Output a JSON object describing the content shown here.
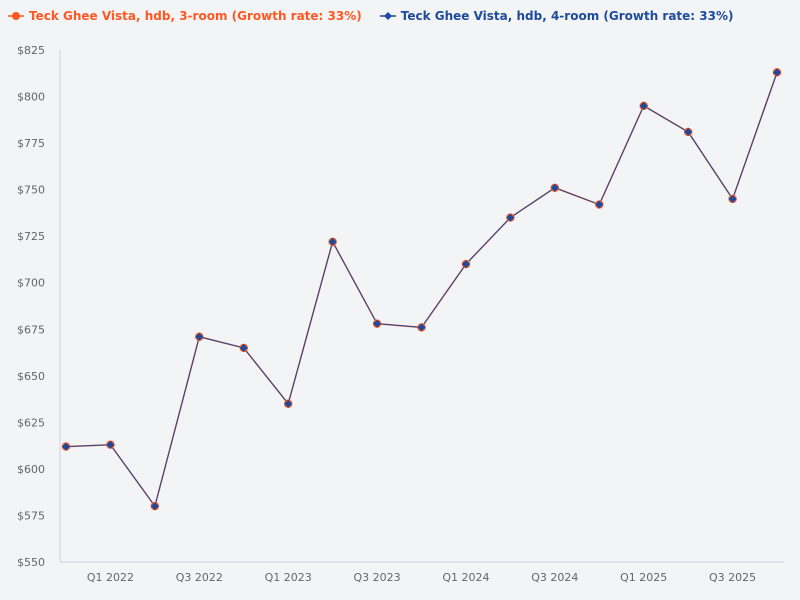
{
  "chart_data": {
    "type": "line",
    "categories": [
      "Q4 2021",
      "Q1 2022",
      "Q2 2022",
      "Q3 2022",
      "Q4 2022",
      "Q1 2023",
      "Q2 2023",
      "Q3 2023",
      "Q4 2023",
      "Q1 2024",
      "Q2 2024",
      "Q3 2024",
      "Q4 2024",
      "Q1 2025",
      "Q2 2025",
      "Q3 2025",
      "Q4 2025"
    ],
    "x_tick_labels": [
      "Q1 2022",
      "Q3 2022",
      "Q1 2023",
      "Q3 2023",
      "Q1 2024",
      "Q3 2024",
      "Q1 2025",
      "Q3 2025"
    ],
    "y_tick_labels": [
      "$550",
      "$575",
      "$600",
      "$625",
      "$650",
      "$675",
      "$700",
      "$725",
      "$750",
      "$775",
      "$800",
      "$825"
    ],
    "ylim": [
      550,
      825
    ],
    "grid": false,
    "legend_position": "top-left",
    "series": [
      {
        "name": "Teck Ghee Vista, hdb, 3-room (Growth rate: 33%)",
        "color": "#ff5722",
        "marker": "circle",
        "values": [
          612,
          613,
          580,
          671,
          665,
          635,
          722,
          678,
          676,
          710,
          735,
          751,
          742,
          795,
          781,
          745,
          813
        ]
      },
      {
        "name": "Teck Ghee Vista, hdb, 4-room (Growth rate: 33%)",
        "color": "#1e4a9c",
        "marker": "diamond",
        "values": [
          612,
          613,
          580,
          671,
          665,
          635,
          722,
          678,
          676,
          710,
          735,
          751,
          742,
          795,
          781,
          745,
          813
        ]
      }
    ]
  }
}
